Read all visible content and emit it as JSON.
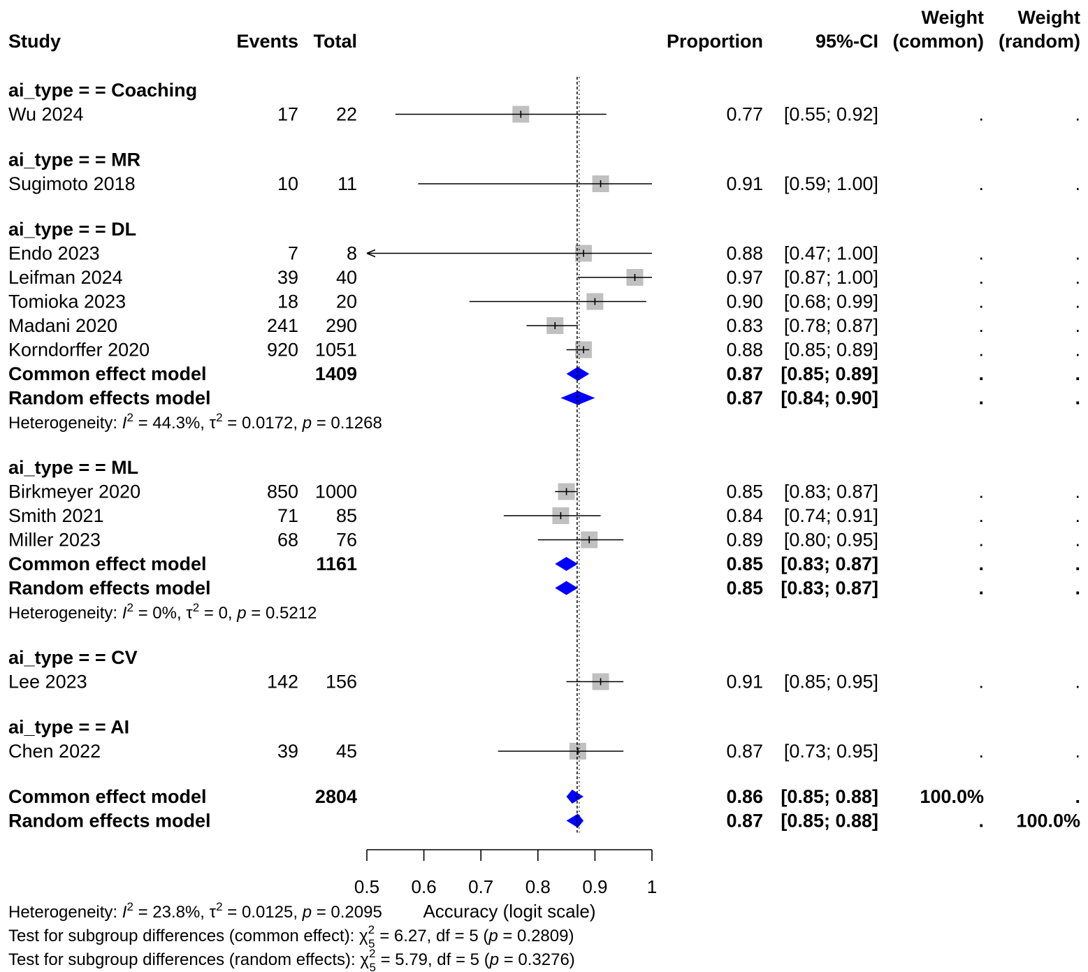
{
  "chart_data": {
    "type": "forest",
    "xlabel": "Accuracy (logit scale)",
    "x_ticks": [
      "0.5",
      "0.6",
      "0.7",
      "0.8",
      "0.9",
      "1"
    ],
    "xlim": [
      0.5,
      1.0
    ],
    "reference_line": 0.87,
    "headers": {
      "study": "Study",
      "events": "Events",
      "total": "Total",
      "proportion": "Proportion",
      "ci": "95%-CI",
      "weight_common_1": "Weight",
      "weight_common_2": "(common)",
      "weight_random_1": "Weight",
      "weight_random_2": "(random)"
    },
    "rows": [
      {
        "kind": "subgroup",
        "label": "ai_type = = Coaching"
      },
      {
        "kind": "study",
        "label": "Wu 2024",
        "events": "17",
        "total": "22",
        "est": 0.77,
        "lo": 0.55,
        "hi": 0.92,
        "prop": "0.77",
        "ci": "[0.55; 0.92]",
        "wc": ".",
        "wr": "."
      },
      {
        "kind": "gap"
      },
      {
        "kind": "subgroup",
        "label": "ai_type = = MR"
      },
      {
        "kind": "study",
        "label": "Sugimoto 2018",
        "events": "10",
        "total": "11",
        "est": 0.91,
        "lo": 0.59,
        "hi": 1.0,
        "prop": "0.91",
        "ci": "[0.59; 1.00]",
        "wc": ".",
        "wr": "."
      },
      {
        "kind": "gap"
      },
      {
        "kind": "subgroup",
        "label": "ai_type = = DL"
      },
      {
        "kind": "study",
        "label": "Endo 2023",
        "events": "7",
        "total": "8",
        "est": 0.88,
        "lo": 0.47,
        "hi": 1.0,
        "prop": "0.88",
        "ci": "[0.47; 1.00]",
        "wc": ".",
        "wr": ".",
        "arrow_left": true
      },
      {
        "kind": "study",
        "label": "Leifman 2024",
        "events": "39",
        "total": "40",
        "est": 0.97,
        "lo": 0.87,
        "hi": 1.0,
        "prop": "0.97",
        "ci": "[0.87; 1.00]",
        "wc": ".",
        "wr": "."
      },
      {
        "kind": "study",
        "label": "Tomioka 2023",
        "events": "18",
        "total": "20",
        "est": 0.9,
        "lo": 0.68,
        "hi": 0.99,
        "prop": "0.90",
        "ci": "[0.68; 0.99]",
        "wc": ".",
        "wr": "."
      },
      {
        "kind": "study",
        "label": "Madani 2020",
        "events": "241",
        "total": "290",
        "est": 0.83,
        "lo": 0.78,
        "hi": 0.87,
        "prop": "0.83",
        "ci": "[0.78; 0.87]",
        "wc": ".",
        "wr": "."
      },
      {
        "kind": "study",
        "label": "Korndorffer 2020",
        "events": "920",
        "total": "1051",
        "est": 0.88,
        "lo": 0.85,
        "hi": 0.89,
        "prop": "0.88",
        "ci": "[0.85; 0.89]",
        "wc": ".",
        "wr": "."
      },
      {
        "kind": "common",
        "label": "Common effect model",
        "total": "1409",
        "est": 0.87,
        "lo": 0.85,
        "hi": 0.89,
        "prop": "0.87",
        "ci": "[0.85; 0.89]",
        "wc": ".",
        "wr": "."
      },
      {
        "kind": "random",
        "label": "Random effects model",
        "est": 0.87,
        "lo": 0.84,
        "hi": 0.9,
        "prop": "0.87",
        "ci": "[0.84; 0.90]",
        "wc": ".",
        "wr": "."
      },
      {
        "kind": "het",
        "i2": "44.3%",
        "tau2": "0.0172",
        "p": "0.1268"
      },
      {
        "kind": "gap"
      },
      {
        "kind": "subgroup",
        "label": "ai_type = = ML"
      },
      {
        "kind": "study",
        "label": "Birkmeyer 2020",
        "events": "850",
        "total": "1000",
        "est": 0.85,
        "lo": 0.83,
        "hi": 0.87,
        "prop": "0.85",
        "ci": "[0.83; 0.87]",
        "wc": ".",
        "wr": "."
      },
      {
        "kind": "study",
        "label": "Smith 2021",
        "events": "71",
        "total": "85",
        "est": 0.84,
        "lo": 0.74,
        "hi": 0.91,
        "prop": "0.84",
        "ci": "[0.74; 0.91]",
        "wc": ".",
        "wr": "."
      },
      {
        "kind": "study",
        "label": "Miller 2023",
        "events": "68",
        "total": "76",
        "est": 0.89,
        "lo": 0.8,
        "hi": 0.95,
        "prop": "0.89",
        "ci": "[0.80; 0.95]",
        "wc": ".",
        "wr": "."
      },
      {
        "kind": "common",
        "label": "Common effect model",
        "total": "1161",
        "est": 0.85,
        "lo": 0.83,
        "hi": 0.87,
        "prop": "0.85",
        "ci": "[0.83; 0.87]",
        "wc": ".",
        "wr": "."
      },
      {
        "kind": "random",
        "label": "Random effects model",
        "est": 0.85,
        "lo": 0.83,
        "hi": 0.87,
        "prop": "0.85",
        "ci": "[0.83; 0.87]",
        "wc": ".",
        "wr": "."
      },
      {
        "kind": "het",
        "i2": "0%",
        "tau2": "0",
        "p": "0.5212"
      },
      {
        "kind": "gap"
      },
      {
        "kind": "subgroup",
        "label": "ai_type = = CV"
      },
      {
        "kind": "study",
        "label": "Lee 2023",
        "events": "142",
        "total": "156",
        "est": 0.91,
        "lo": 0.85,
        "hi": 0.95,
        "prop": "0.91",
        "ci": "[0.85; 0.95]",
        "wc": ".",
        "wr": "."
      },
      {
        "kind": "gap"
      },
      {
        "kind": "subgroup",
        "label": "ai_type = = AI"
      },
      {
        "kind": "study",
        "label": "Chen 2022",
        "events": "39",
        "total": "45",
        "est": 0.87,
        "lo": 0.73,
        "hi": 0.95,
        "prop": "0.87",
        "ci": "[0.73; 0.95]",
        "wc": ".",
        "wr": "."
      },
      {
        "kind": "gap"
      },
      {
        "kind": "common",
        "label": "Common effect model",
        "total": "2804",
        "est": 0.86,
        "lo": 0.85,
        "hi": 0.88,
        "prop": "0.86",
        "ci": "[0.85; 0.88]",
        "wc": "100.0%",
        "wr": "."
      },
      {
        "kind": "random",
        "label": "Random effects model",
        "est": 0.87,
        "lo": 0.85,
        "hi": 0.88,
        "prop": "0.87",
        "ci": "[0.85; 0.88]",
        "wc": ".",
        "wr": "100.0%"
      }
    ],
    "overall_heterogeneity": {
      "i2": "23.8%",
      "tau2": "0.0125",
      "p": "0.2095"
    },
    "subgroup_tests": [
      {
        "label": "Test for subgroup differences (common effect): ",
        "chi2": "6.27",
        "df_sub": "5",
        "df": "5",
        "p": "0.2809"
      },
      {
        "label": "Test for subgroup differences (random effects): ",
        "chi2": "5.79",
        "df_sub": "5",
        "df": "5",
        "p": "0.3276"
      }
    ],
    "colors": {
      "box": "#c0c0c0",
      "diamond": "#0000ff",
      "line": "#000000"
    }
  }
}
